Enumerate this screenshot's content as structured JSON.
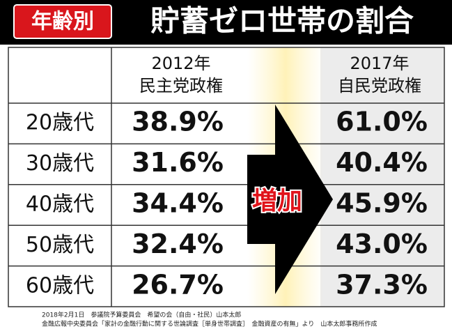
{
  "header": {
    "badge": "年齢別",
    "title": "貯蓄ゼロ世帯の割合"
  },
  "table": {
    "columns": [
      [
        "2012年",
        "民主党政権"
      ],
      [
        "2017年",
        "自民党政権"
      ]
    ],
    "rows": [
      [
        "20歳代",
        "38.9%",
        "61.0%"
      ],
      [
        "30歳代",
        "31.6%",
        "40.4%"
      ],
      [
        "40歳代",
        "34.4%",
        "45.9%"
      ],
      [
        "50歳代",
        "32.4%",
        "43.0%"
      ],
      [
        "60歳代",
        "26.7%",
        "37.3%"
      ]
    ]
  },
  "arrow_label": "増加",
  "footer": [
    "2018年2月1日　参議院予算委員会　希望の会（自由・社民）山本太郎",
    "金融広報中央委員会「家計の金融行動に関する世論調査［単身世帯調査］　金融資産の有無」より　山本太郎事務所作成"
  ]
}
